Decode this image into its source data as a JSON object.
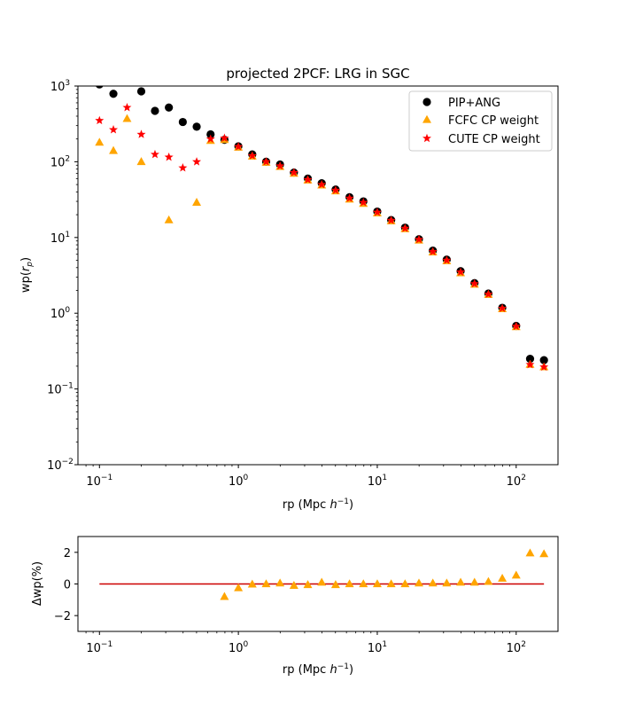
{
  "chart_data": [
    {
      "type": "scatter",
      "title": "projected 2PCF: LRG in SGC",
      "xlabel_main": "rp (Mpc ",
      "xlabel_sup": "h",
      "xlabel_exp": "−1",
      "xlabel_close": ")",
      "ylabel_main": "wp(",
      "ylabel_sub_r": "r",
      "ylabel_sub_p": "p",
      "ylabel_close": ")",
      "x_scale": "log",
      "y_scale": "log",
      "xlim": [
        0.07,
        200
      ],
      "ylim": [
        0.01,
        1000
      ],
      "x_ticks": [
        {
          "v": 0.1,
          "base": "10",
          "exp": "−1"
        },
        {
          "v": 1,
          "base": "10",
          "exp": "0"
        },
        {
          "v": 10,
          "base": "10",
          "exp": "1"
        },
        {
          "v": 100,
          "base": "10",
          "exp": "2"
        }
      ],
      "y_ticks": [
        {
          "v": 0.01,
          "base": "10",
          "exp": "−2"
        },
        {
          "v": 0.1,
          "base": "10",
          "exp": "−1"
        },
        {
          "v": 1,
          "base": "10",
          "exp": "0"
        },
        {
          "v": 10,
          "base": "10",
          "exp": "1"
        },
        {
          "v": 100,
          "base": "10",
          "exp": "2"
        },
        {
          "v": 1000,
          "base": "10",
          "exp": "3"
        }
      ],
      "legend_position": "top-right",
      "series": [
        {
          "name": "PIP+ANG",
          "marker": "circle",
          "color": "#000000",
          "x": [
            0.1,
            0.126,
            0.2,
            0.251,
            0.316,
            0.398,
            0.501,
            0.631,
            0.794,
            1.0,
            1.259,
            1.585,
            1.995,
            2.512,
            3.162,
            3.981,
            5.012,
            6.31,
            7.943,
            10.0,
            12.59,
            15.85,
            19.95,
            25.12,
            31.62,
            39.81,
            50.12,
            63.1,
            79.43,
            100.0,
            125.9,
            158.5
          ],
          "y": [
            1050,
            790,
            850,
            470,
            520,
            335,
            290,
            230,
            195,
            160,
            125,
            100,
            92,
            72,
            60,
            52,
            43,
            34,
            30,
            22,
            17,
            13.5,
            9.5,
            6.7,
            5.1,
            3.6,
            2.5,
            1.82,
            1.18,
            0.68,
            0.25,
            0.24
          ]
        },
        {
          "name": "FCFC CP weight",
          "marker": "triangle",
          "color": "#ffa500",
          "x": [
            0.1,
            0.126,
            0.158,
            0.2,
            0.316,
            0.501,
            0.631,
            0.794,
            1.0,
            1.259,
            1.585,
            1.995,
            2.512,
            3.162,
            3.981,
            5.012,
            6.31,
            7.943,
            10.0,
            12.59,
            15.85,
            19.95,
            25.12,
            31.62,
            39.81,
            50.12,
            63.1,
            79.43,
            100.0,
            125.9,
            158.5
          ],
          "y": [
            180,
            140,
            370,
            100,
            17,
            29,
            190,
            195,
            155,
            118,
            98,
            86,
            70,
            57,
            49,
            41,
            32,
            28,
            21,
            16.5,
            13,
            9.2,
            6.4,
            4.9,
            3.4,
            2.4,
            1.76,
            1.14,
            0.66,
            0.21,
            0.195
          ]
        },
        {
          "name": "CUTE CP weight",
          "marker": "star",
          "color": "#ff0000",
          "x": [
            0.1,
            0.126,
            0.158,
            0.2,
            0.251,
            0.316,
            0.398,
            0.501,
            0.631,
            0.794,
            1.0,
            1.259,
            1.585,
            1.995,
            2.512,
            3.162,
            3.981,
            5.012,
            6.31,
            7.943,
            10.0,
            12.59,
            15.85,
            19.95,
            25.12,
            31.62,
            39.81,
            50.12,
            63.1,
            79.43,
            100.0,
            125.9,
            158.5
          ],
          "y": [
            350,
            265,
            520,
            230,
            125,
            115,
            83,
            100,
            200,
            205,
            158,
            120,
            100,
            88,
            72,
            58,
            50,
            42,
            33,
            29,
            21.5,
            16.8,
            13.2,
            9.4,
            6.5,
            5.0,
            3.5,
            2.45,
            1.78,
            1.16,
            0.67,
            0.21,
            0.195
          ]
        }
      ]
    },
    {
      "type": "scatter",
      "xlabel_main": "rp (Mpc ",
      "xlabel_sup": "h",
      "xlabel_exp": "−1",
      "xlabel_close": ")",
      "ylabel": "Δwp(%)",
      "x_scale": "log",
      "xlim": [
        0.07,
        200
      ],
      "ylim": [
        -3,
        3
      ],
      "x_ticks": [
        {
          "v": 0.1,
          "base": "10",
          "exp": "−1"
        },
        {
          "v": 1,
          "base": "10",
          "exp": "0"
        },
        {
          "v": 10,
          "base": "10",
          "exp": "1"
        },
        {
          "v": 100,
          "base": "10",
          "exp": "2"
        }
      ],
      "y_ticks": [
        {
          "v": -2,
          "label": "−2"
        },
        {
          "v": 0,
          "label": "0"
        },
        {
          "v": 2,
          "label": "2"
        }
      ],
      "reference_line": {
        "x": [
          0.1,
          158.5
        ],
        "y": 0,
        "color": "#cc0000"
      },
      "series": [
        {
          "marker": "triangle",
          "color": "#ffa500",
          "x": [
            0.794,
            1.0,
            1.259,
            1.585,
            1.995,
            2.512,
            3.162,
            3.981,
            5.012,
            6.31,
            7.943,
            10.0,
            12.59,
            15.85,
            19.95,
            25.12,
            31.62,
            39.81,
            50.12,
            63.1,
            79.43,
            100.0,
            125.9,
            158.5
          ],
          "y": [
            -0.8,
            -0.25,
            -0.02,
            0.0,
            0.05,
            -0.1,
            -0.05,
            0.1,
            -0.05,
            0.0,
            0.0,
            0.0,
            0.0,
            0.0,
            0.05,
            0.05,
            0.05,
            0.1,
            0.1,
            0.15,
            0.35,
            0.55,
            1.95,
            1.9
          ]
        }
      ]
    }
  ]
}
